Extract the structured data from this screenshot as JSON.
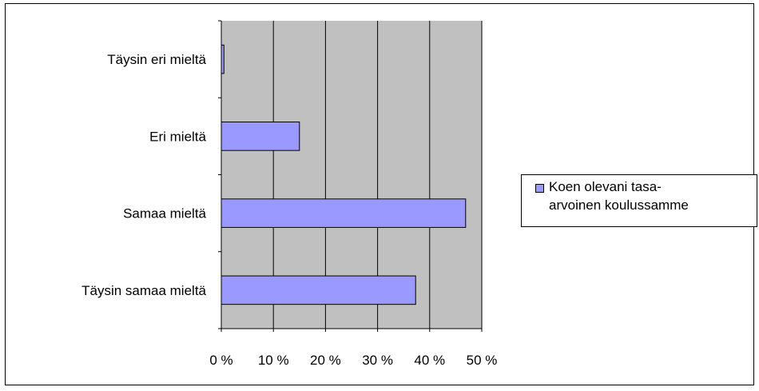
{
  "chart_data": {
    "type": "bar",
    "orientation": "horizontal",
    "categories": [
      "Täysin eri mieltä",
      "Eri mieltä",
      "Samaa mieltä",
      "Täysin samaa mieltä"
    ],
    "series": [
      {
        "name": "Koen olevani tasa-arvoinen koulussamme",
        "values": [
          0.5,
          15,
          46.9,
          37.3
        ]
      }
    ],
    "xlim": [
      0,
      50
    ],
    "xticks": [
      "0 %",
      "10 %",
      "20 %",
      "30 %",
      "40 %",
      "50 %"
    ],
    "xlabel": "",
    "ylabel": "",
    "title": "",
    "grid": true,
    "legend_position": "right",
    "legend_lines": [
      "Koen olevani tasa-",
      "arvoinen koulussamme"
    ],
    "colors": {
      "bar": "#9999ff",
      "plot_bg": "#c0c0c0",
      "grid": "#000000",
      "bar_border": "#000000"
    }
  }
}
